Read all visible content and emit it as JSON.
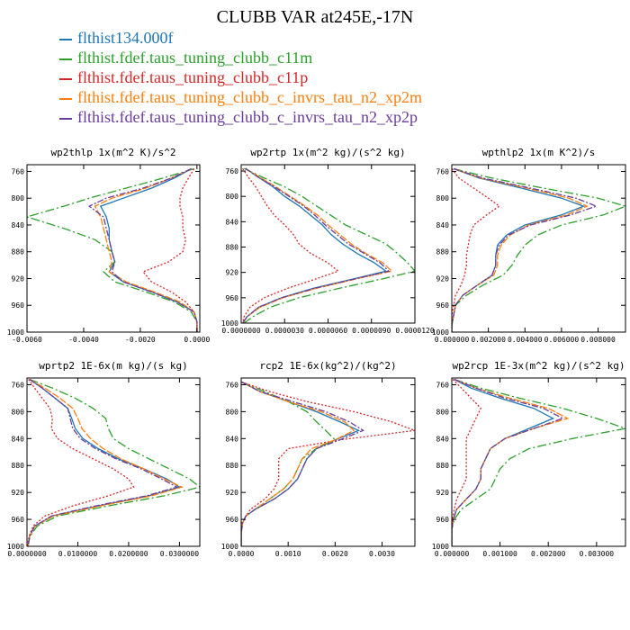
{
  "title": "CLUBB VAR at245E,-17N",
  "legend": [
    {
      "label": "flthist134.000f",
      "color": "#1f77b4"
    },
    {
      "label": "flthist.fdef.taus_tuning_clubb_c11m",
      "color": "#2ca02c"
    },
    {
      "label": "flthist.fdef.taus_tuning_clubb_c11p",
      "color": "#d62728"
    },
    {
      "label": "flthist.fdef.taus_tuning_clubb_c_invrs_tau_n2_xp2m",
      "color": "#ff7f0e"
    },
    {
      "label": "flthist.fdef.taus_tuning_clubb_c_invrs_tau_n2_xp2p",
      "color": "#6a3d9a"
    }
  ],
  "chart_data": [
    {
      "type": "line",
      "title": "wp2thlp  1x(m^2 K)/s^2",
      "xlim": [
        -0.006,
        0.0001
      ],
      "ylim": [
        1000,
        750
      ],
      "xticks": [
        -0.006,
        -0.004,
        -0.002,
        0.0
      ],
      "xtick_labels": [
        "-0.0060",
        "-0.0040",
        "-0.0020",
        "0.0000"
      ],
      "yticks": [
        760,
        800,
        840,
        880,
        920,
        960,
        1000
      ],
      "ytick_labels": [
        "760",
        "800",
        "840",
        "880",
        "920",
        "960",
        "1000"
      ],
      "levels": [
        756,
        770,
        785,
        800,
        812,
        828,
        845,
        862,
        880,
        895,
        910,
        925,
        940,
        955,
        970,
        985,
        1000
      ],
      "series": [
        {
          "values": [
            -0.0002,
            -0.0008,
            -0.0016,
            -0.0026,
            -0.0034,
            -0.0032,
            -0.0031,
            -0.0031,
            -0.003,
            -0.0029,
            -0.0031,
            -0.0026,
            -0.0016,
            -0.0007,
            -0.0001,
            0.0,
            0.0
          ]
        },
        {
          "values": [
            -0.0001,
            -0.0012,
            -0.0025,
            -0.0038,
            -0.0047,
            -0.006,
            -0.0047,
            -0.0036,
            -0.003,
            -0.0029,
            -0.0033,
            -0.0029,
            -0.0018,
            -0.0008,
            -0.0002,
            0.0,
            0.0
          ]
        },
        {
          "values": [
            -0.0001,
            -0.0003,
            -0.0005,
            -0.0006,
            -0.0006,
            -0.0005,
            -0.0005,
            -0.0004,
            -0.0005,
            -0.001,
            -0.0019,
            -0.0016,
            -0.0009,
            -0.0004,
            -0.0001,
            0.0,
            0.0
          ]
        },
        {
          "values": [
            -0.0002,
            -0.0009,
            -0.0018,
            -0.003,
            -0.0036,
            -0.0034,
            -0.0033,
            -0.0032,
            -0.0031,
            -0.003,
            -0.0031,
            -0.0025,
            -0.0015,
            -0.0006,
            -0.0001,
            0.0,
            0.0
          ]
        },
        {
          "values": [
            -0.0002,
            -0.0009,
            -0.0019,
            -0.0032,
            -0.0038,
            -0.0033,
            -0.0032,
            -0.0031,
            -0.003,
            -0.0029,
            -0.003,
            -0.0026,
            -0.0016,
            -0.0007,
            -0.0001,
            0.0,
            0.0
          ]
        }
      ]
    },
    {
      "type": "line",
      "title": "wp2rtp  1x(m^2 kg)/(s^2 kg)",
      "xlim": [
        0.0,
        1.2e-05
      ],
      "ylim": [
        1000,
        750
      ],
      "xticks": [
        0.0,
        3e-06,
        6e-06,
        9e-06,
        1.2e-05
      ],
      "xtick_labels": [
        "0.0000000",
        "0.0000030",
        "0.0000060",
        "0.0000090",
        "0.0000120"
      ],
      "yticks": [
        760,
        800,
        840,
        880,
        920,
        960,
        1000
      ],
      "ytick_labels": [
        "760",
        "800",
        "840",
        "880",
        "920",
        "960",
        "1000"
      ],
      "levels": [
        756,
        770,
        785,
        800,
        815,
        830,
        845,
        860,
        875,
        890,
        905,
        918,
        930,
        945,
        960,
        975,
        990,
        1000
      ],
      "series": [
        {
          "values": [
            3e-07,
            1.2e-06,
            2.2e-06,
            3e-06,
            4e-06,
            4.8e-06,
            5.6e-06,
            6.2e-06,
            7e-06,
            8e-06,
            9.2e-06,
            1e-05,
            7.8e-06,
            5e-06,
            2.8e-06,
            1.2e-06,
            4e-07,
            1e-07
          ]
        },
        {
          "values": [
            2e-07,
            1.5e-06,
            3e-06,
            4.2e-06,
            5.2e-06,
            6.2e-06,
            7.2e-06,
            8.6e-06,
            1e-05,
            1.08e-05,
            1.15e-05,
            1.2e-05,
            9.8e-06,
            6.8e-06,
            4e-06,
            2e-06,
            8e-07,
            2e-07
          ]
        },
        {
          "values": [
            1e-07,
            5e-07,
            1e-06,
            1.4e-06,
            1.8e-06,
            2.3e-06,
            3e-06,
            3.6e-06,
            4e-06,
            4.8e-06,
            6e-06,
            6.7e-06,
            5.2e-06,
            3.2e-06,
            1.6e-06,
            6e-07,
            2e-07,
            1e-07
          ]
        },
        {
          "values": [
            3e-07,
            1.3e-06,
            2.4e-06,
            3.4e-06,
            4.4e-06,
            5.3e-06,
            6e-06,
            6.8e-06,
            7.6e-06,
            8.6e-06,
            9.8e-06,
            1.04e-05,
            8e-06,
            5.2e-06,
            2.9e-06,
            1.3e-06,
            4e-07,
            1e-07
          ]
        },
        {
          "values": [
            3e-07,
            1.2e-06,
            2.3e-06,
            3.3e-06,
            4.3e-06,
            5.1e-06,
            5.8e-06,
            6.6e-06,
            7.4e-06,
            8.5e-06,
            9.6e-06,
            1.02e-05,
            7.9e-06,
            5.1e-06,
            2.8e-06,
            1.2e-06,
            4e-07,
            1e-07
          ]
        }
      ]
    },
    {
      "type": "line",
      "title": "wpthlp2  1x(m K^2)/s",
      "xlim": [
        0.0,
        0.0095
      ],
      "ylim": [
        1000,
        750
      ],
      "xticks": [
        0.0,
        0.002,
        0.004,
        0.006,
        0.008
      ],
      "xtick_labels": [
        "0.000000",
        "0.002000",
        "0.004000",
        "0.006000",
        "0.008000"
      ],
      "yticks": [
        760,
        800,
        840,
        880,
        920,
        960,
        1000
      ],
      "ytick_labels": [
        "760",
        "800",
        "840",
        "880",
        "920",
        "960",
        "1000"
      ],
      "levels": [
        756,
        770,
        785,
        800,
        812,
        825,
        840,
        855,
        870,
        885,
        900,
        915,
        930,
        945,
        960,
        975,
        990,
        1000
      ],
      "series": [
        {
          "values": [
            0.0001,
            0.0015,
            0.0038,
            0.006,
            0.0072,
            0.006,
            0.004,
            0.003,
            0.0025,
            0.0024,
            0.0024,
            0.0022,
            0.0014,
            0.0006,
            0.0002,
            0.0001,
            0.0,
            0.0
          ]
        },
        {
          "values": [
            0.0001,
            0.0022,
            0.005,
            0.008,
            0.0095,
            0.0083,
            0.006,
            0.0047,
            0.004,
            0.0036,
            0.0033,
            0.0028,
            0.0017,
            0.0008,
            0.0002,
            0.0001,
            0.0,
            0.0
          ]
        },
        {
          "values": [
            0.0,
            0.0004,
            0.0012,
            0.002,
            0.0026,
            0.0019,
            0.0012,
            0.001,
            0.0009,
            0.0008,
            0.0008,
            0.0007,
            0.0005,
            0.0002,
            0.0001,
            0.0,
            0.0,
            0.0
          ]
        },
        {
          "values": [
            0.0001,
            0.0016,
            0.0041,
            0.0064,
            0.0074,
            0.0063,
            0.0042,
            0.0032,
            0.0027,
            0.0025,
            0.0025,
            0.0023,
            0.0014,
            0.0006,
            0.0002,
            0.0001,
            0.0,
            0.0
          ]
        },
        {
          "values": [
            0.0001,
            0.0017,
            0.0043,
            0.0068,
            0.0079,
            0.0065,
            0.0043,
            0.0031,
            0.0026,
            0.0024,
            0.0024,
            0.0022,
            0.0014,
            0.0006,
            0.0002,
            0.0001,
            0.0,
            0.0
          ]
        }
      ]
    },
    {
      "type": "line",
      "title": "wprtp2  1E-6x(m kg)/(s kg)",
      "xlim": [
        0.0,
        0.034
      ],
      "ylim": [
        1000,
        750
      ],
      "xticks": [
        0.0,
        0.01,
        0.02,
        0.03
      ],
      "xtick_labels": [
        "0.0000000",
        "0.0100000",
        "0.0200000",
        "0.0300000"
      ],
      "yticks": [
        760,
        800,
        840,
        880,
        920,
        960,
        1000
      ],
      "ytick_labels": [
        "760",
        "800",
        "840",
        "880",
        "920",
        "960",
        "1000"
      ],
      "levels": [
        752,
        765,
        780,
        795,
        810,
        825,
        840,
        855,
        870,
        885,
        900,
        912,
        925,
        940,
        955,
        970,
        985,
        1000
      ],
      "series": [
        {
          "values": [
            0.0005,
            0.003,
            0.0055,
            0.008,
            0.0088,
            0.0095,
            0.011,
            0.014,
            0.018,
            0.023,
            0.0275,
            0.03,
            0.024,
            0.014,
            0.005,
            0.0015,
            0.0005,
            0.0002
          ]
        },
        {
          "values": [
            0.0005,
            0.005,
            0.0095,
            0.013,
            0.0155,
            0.016,
            0.017,
            0.02,
            0.024,
            0.028,
            0.032,
            0.034,
            0.027,
            0.016,
            0.006,
            0.002,
            0.0006,
            0.0002
          ]
        },
        {
          "values": [
            0.0003,
            0.0015,
            0.003,
            0.0045,
            0.005,
            0.0048,
            0.006,
            0.009,
            0.013,
            0.017,
            0.02,
            0.021,
            0.016,
            0.009,
            0.0035,
            0.0012,
            0.0004,
            0.0001
          ]
        },
        {
          "values": [
            0.0005,
            0.0035,
            0.0065,
            0.009,
            0.01,
            0.0108,
            0.0125,
            0.015,
            0.0185,
            0.023,
            0.027,
            0.0305,
            0.0245,
            0.0145,
            0.0052,
            0.0016,
            0.0005,
            0.0002
          ]
        },
        {
          "values": [
            0.0005,
            0.003,
            0.0055,
            0.008,
            0.0085,
            0.009,
            0.0105,
            0.0135,
            0.0175,
            0.0225,
            0.0265,
            0.0295,
            0.0235,
            0.0135,
            0.0048,
            0.0015,
            0.0005,
            0.0002
          ]
        }
      ]
    },
    {
      "type": "line",
      "title": "rcp2  1E-6x(kg^2)/(kg^2)",
      "xlim": [
        0.0,
        0.0037
      ],
      "ylim": [
        1000,
        750
      ],
      "xticks": [
        0.0,
        0.001,
        0.002,
        0.003
      ],
      "xtick_labels": [
        "0.0000",
        "0.0010",
        "0.0020",
        "0.0030"
      ],
      "yticks": [
        760,
        800,
        840,
        880,
        920,
        960,
        1000
      ],
      "ytick_labels": [
        "760",
        "800",
        "840",
        "880",
        "920",
        "960",
        "1000"
      ],
      "levels": [
        756,
        770,
        785,
        800,
        815,
        828,
        842,
        855,
        870,
        885,
        900,
        915,
        930,
        945,
        955,
        965,
        980,
        1000
      ],
      "series": [
        {
          "values": [
            1e-05,
            0.0004,
            0.001,
            0.0016,
            0.0021,
            0.0025,
            0.002,
            0.0016,
            0.0014,
            0.0013,
            0.0012,
            0.001,
            0.0007,
            0.0003,
            0.0001,
            3e-05,
            0.0,
            0.0
          ]
        },
        {
          "values": [
            1e-05,
            0.0005,
            0.001,
            0.0014,
            0.0016,
            0.0018,
            0.002,
            0.0016,
            0.0013,
            0.0012,
            0.0011,
            0.0009,
            0.0006,
            0.0003,
            0.0001,
            3e-05,
            0.0,
            0.0
          ]
        },
        {
          "values": [
            1e-05,
            0.0006,
            0.0014,
            0.0024,
            0.0032,
            0.0037,
            0.0021,
            0.001,
            0.0008,
            0.0008,
            0.0008,
            0.0007,
            0.0005,
            0.0002,
            0.0001,
            2e-05,
            0.0,
            0.0
          ]
        },
        {
          "values": [
            1e-05,
            0.0004,
            0.001,
            0.0017,
            0.0022,
            0.0024,
            0.002,
            0.0015,
            0.0013,
            0.0012,
            0.0011,
            0.0009,
            0.0006,
            0.0003,
            0.0001,
            3e-05,
            0.0,
            0.0
          ]
        },
        {
          "values": [
            1e-05,
            0.0004,
            0.0011,
            0.0018,
            0.0023,
            0.0026,
            0.0021,
            0.0016,
            0.0014,
            0.0013,
            0.0012,
            0.001,
            0.0007,
            0.0003,
            0.0001,
            3e-05,
            0.0,
            0.0
          ]
        }
      ]
    },
    {
      "type": "line",
      "title": "wp2rcp  1E-3x(m^2 kg)/(s^2 kg)",
      "xlim": [
        0.0,
        0.0036
      ],
      "ylim": [
        1000,
        750
      ],
      "xticks": [
        0.0,
        0.001,
        0.002,
        0.003
      ],
      "xtick_labels": [
        "0.000000",
        "0.001000",
        "0.002000",
        "0.003000"
      ],
      "yticks": [
        760,
        800,
        840,
        880,
        920,
        960,
        1000
      ],
      "ytick_labels": [
        "760",
        "800",
        "840",
        "880",
        "920",
        "960",
        "1000"
      ],
      "levels": [
        752,
        765,
        780,
        795,
        810,
        825,
        840,
        855,
        870,
        885,
        900,
        915,
        930,
        945,
        960,
        975,
        990,
        1000
      ],
      "series": [
        {
          "values": [
            5e-05,
            0.0004,
            0.001,
            0.0017,
            0.0021,
            0.0016,
            0.0011,
            0.0008,
            0.0007,
            0.0006,
            0.0006,
            0.0005,
            0.0003,
            0.0001,
            3e-05,
            0.0,
            0.0,
            0.0
          ]
        },
        {
          "values": [
            5e-05,
            0.0006,
            0.0014,
            0.0023,
            0.003,
            0.0036,
            0.0025,
            0.0016,
            0.0012,
            0.001,
            0.0009,
            0.0008,
            0.0005,
            0.0002,
            5e-05,
            0.0,
            0.0,
            0.0
          ]
        },
        {
          "values": [
            2e-05,
            0.0002,
            0.0004,
            0.0006,
            0.0005,
            0.0004,
            0.0003,
            0.0003,
            0.0003,
            0.0003,
            0.0003,
            0.0002,
            0.0001,
            5e-05,
            1e-05,
            0.0,
            0.0,
            0.0
          ]
        },
        {
          "values": [
            5e-05,
            0.0005,
            0.0012,
            0.002,
            0.0024,
            0.0017,
            0.0011,
            0.0008,
            0.0007,
            0.0006,
            0.0006,
            0.0005,
            0.0003,
            0.0001,
            3e-05,
            0.0,
            0.0,
            0.0
          ]
        },
        {
          "values": [
            5e-05,
            0.0005,
            0.0011,
            0.0019,
            0.0023,
            0.0017,
            0.0011,
            0.0008,
            0.0007,
            0.0006,
            0.0006,
            0.0005,
            0.0003,
            0.0001,
            3e-05,
            0.0,
            0.0,
            0.0
          ]
        }
      ]
    }
  ]
}
